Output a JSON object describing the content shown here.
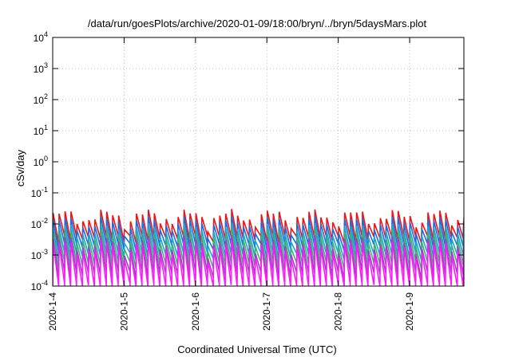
{
  "chart_data": {
    "type": "line",
    "title": "/data/run/goesPlots/archive/2020-01-09/18:00/bryn/../bryn/5daysMars.plot",
    "xlabel": "Coordinated Universal Time (UTC)",
    "ylabel": "cSv/day",
    "yscale": "log",
    "ylim": [
      0.0001,
      10000
    ],
    "xlim": [
      0.0,
      5.76
    ],
    "y_ticks": [
      {
        "base": "10",
        "exp": "-4"
      },
      {
        "base": "10",
        "exp": "-3"
      },
      {
        "base": "10",
        "exp": "-2"
      },
      {
        "base": "10",
        "exp": "-1"
      },
      {
        "base": "10",
        "exp": "0"
      },
      {
        "base": "10",
        "exp": "1"
      },
      {
        "base": "10",
        "exp": "2"
      },
      {
        "base": "10",
        "exp": "3"
      },
      {
        "base": "10",
        "exp": "4"
      }
    ],
    "x_ticks": [
      {
        "label": "2020-1-4",
        "x": 0
      },
      {
        "label": "2020-1-5",
        "x": 1
      },
      {
        "label": "2020-1-6",
        "x": 2
      },
      {
        "label": "2020-1-7",
        "x": 3
      },
      {
        "label": "2020-1-8",
        "x": 4
      },
      {
        "label": "2020-1-9",
        "x": 5
      }
    ],
    "grid": true,
    "cycles_per_day": 12,
    "series": [
      {
        "color": "#e8171a",
        "peak": 0.018,
        "trough": 0.0032
      },
      {
        "color": "#1f6be0",
        "peak": 0.011,
        "trough": 0.0018
      },
      {
        "color": "#18a7d0",
        "peak": 0.0065,
        "trough": 0.0009
      },
      {
        "color": "#3cb371",
        "peak": 0.0042,
        "trough": 0.00045
      },
      {
        "color": "#a040c0",
        "peak": 0.0026,
        "trough": 0.00022
      },
      {
        "color": "#ff18ff",
        "peak": 0.0019,
        "trough": 9e-05
      }
    ]
  }
}
